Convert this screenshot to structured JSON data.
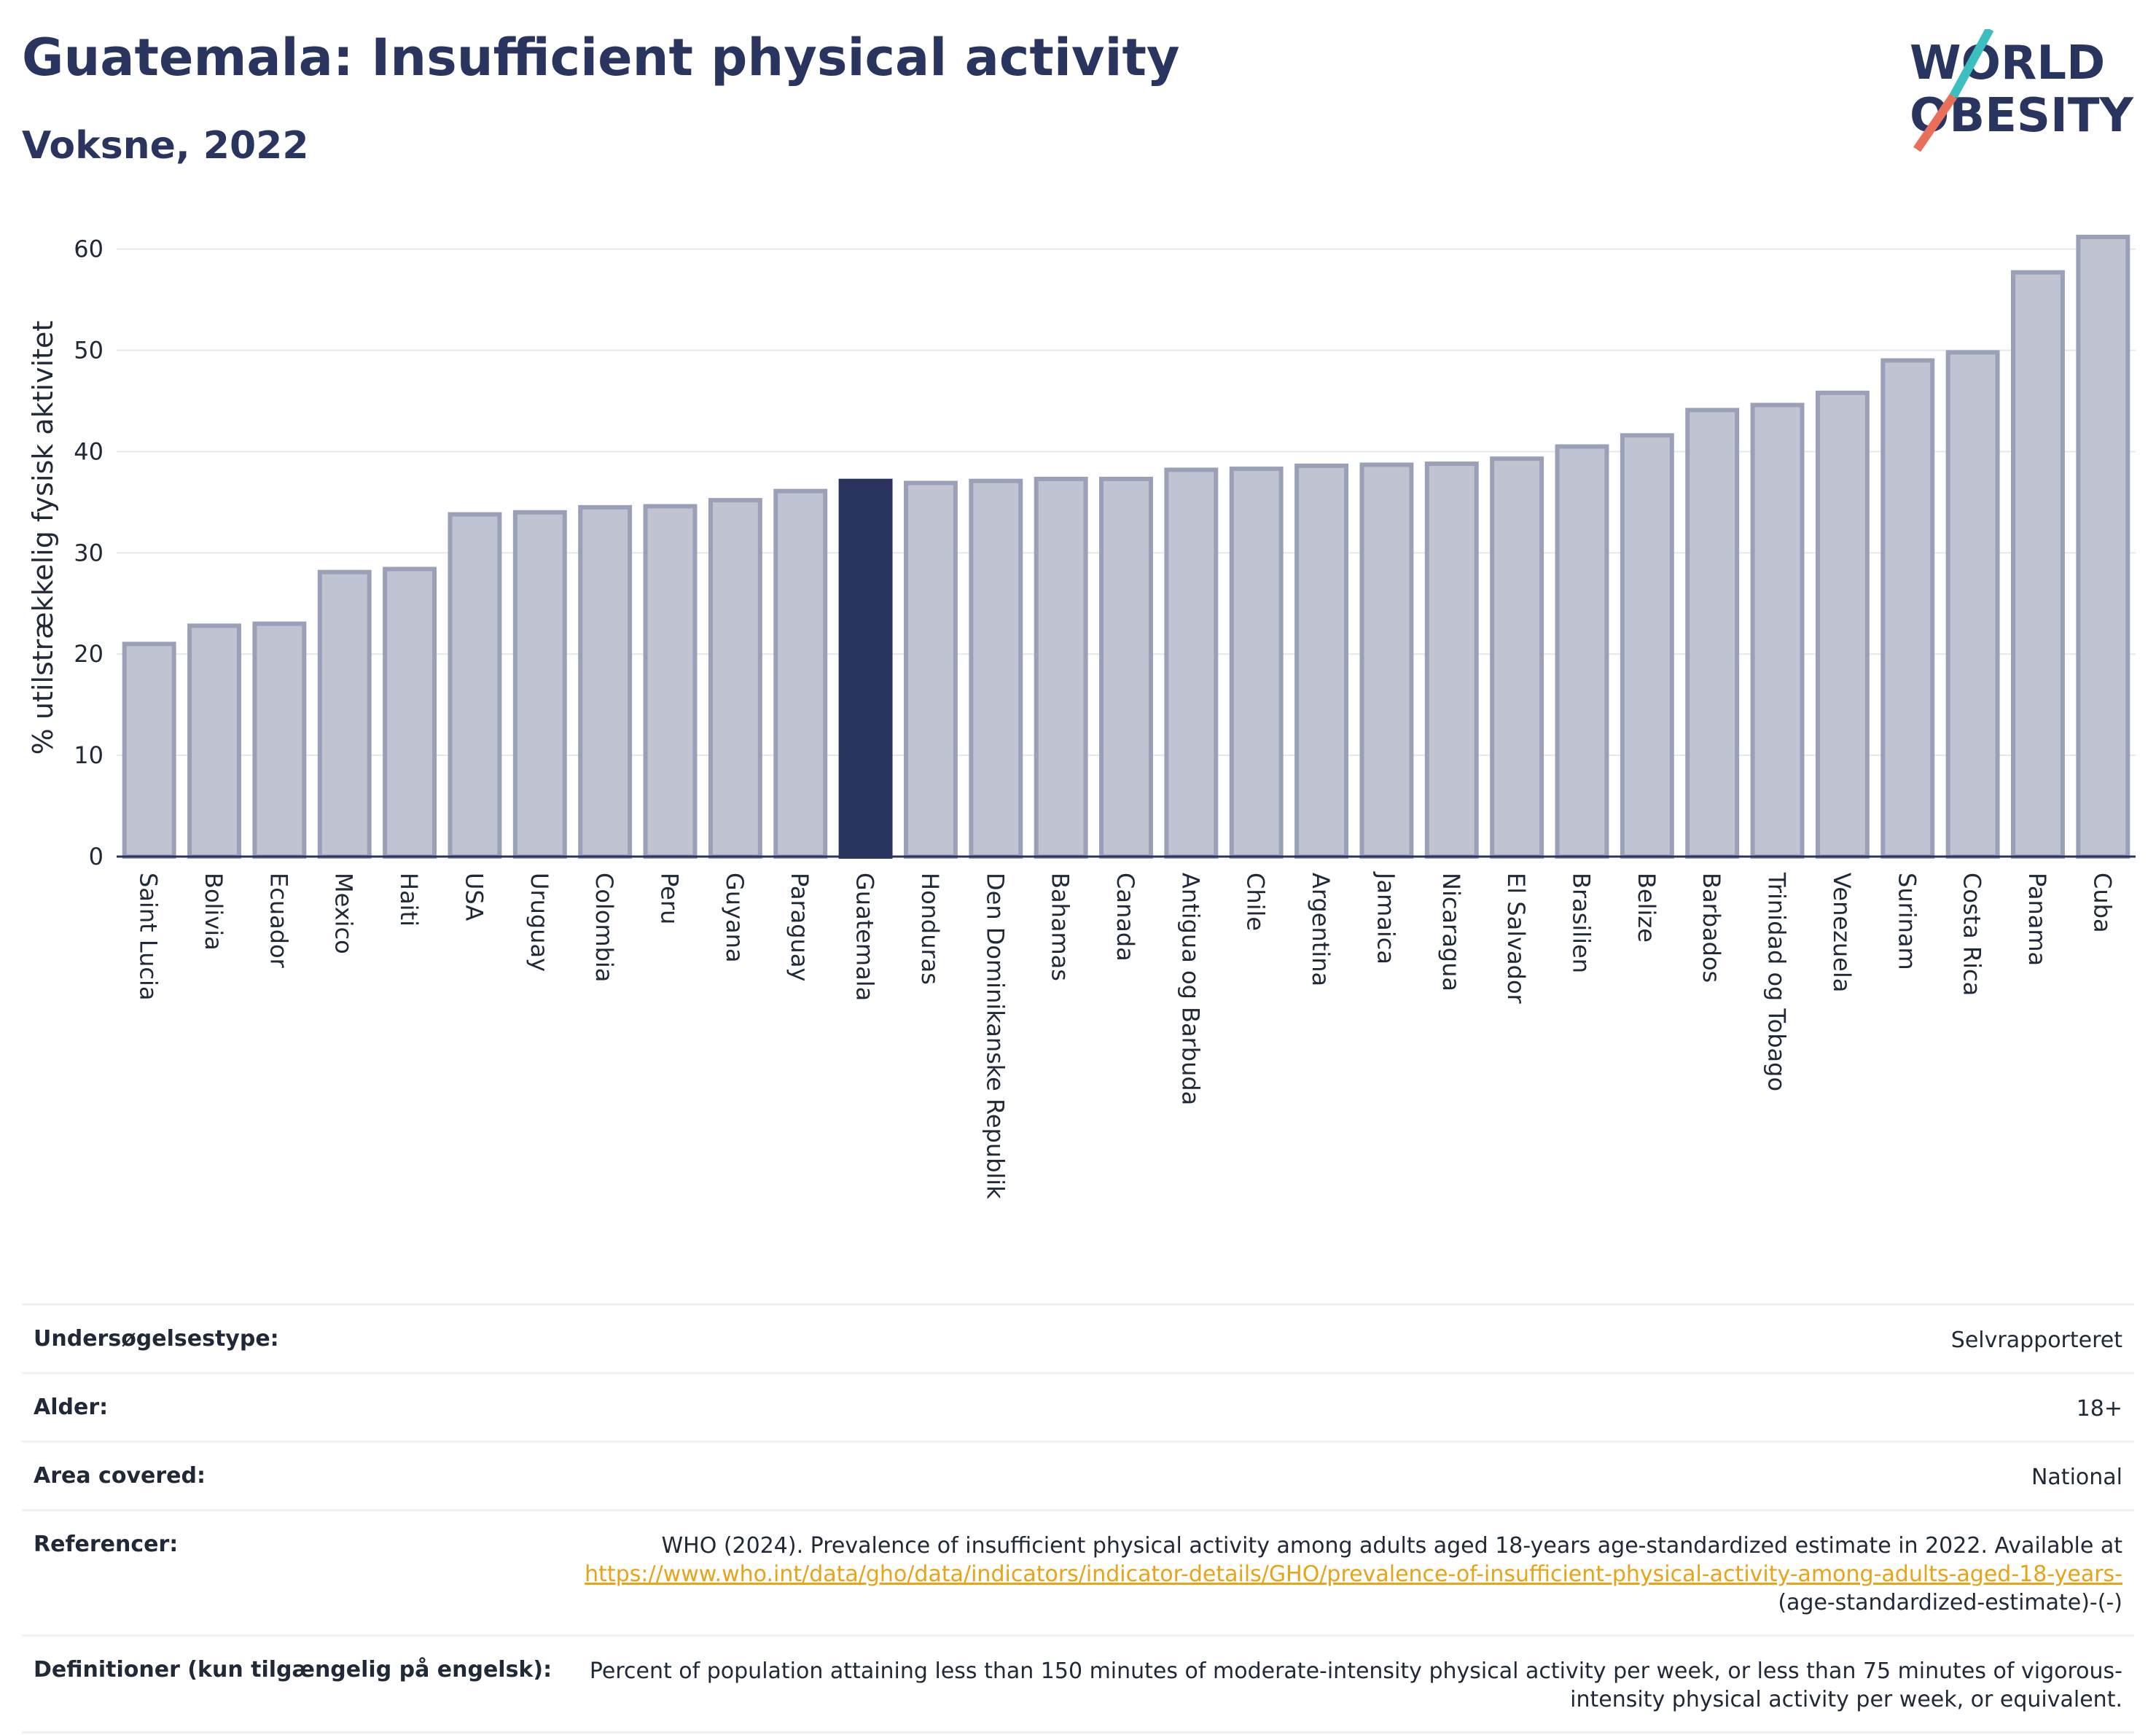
{
  "header": {
    "title": "Guatemala: Insufficient physical activity",
    "subtitle": "Voksne, 2022"
  },
  "logo": {
    "line1": "WORLD",
    "line2": "OBESITY",
    "colors": {
      "text": "#2a355f",
      "slash_teal": "#3bbfbf",
      "slash_coral": "#e8705a"
    }
  },
  "colors": {
    "bar_default": "#c0c3d1",
    "bar_border": "#9aa0b8",
    "bar_highlight": "#2a355f",
    "grid": "#e5e7ee",
    "axis": "#2a355f"
  },
  "chart_data": {
    "type": "bar",
    "ylabel": "% utilstrækkelig fysisk aktivitet",
    "ylim": [
      0,
      63
    ],
    "yticks": [
      0,
      10,
      20,
      30,
      40,
      50,
      60
    ],
    "grid": true,
    "highlight": "Guatemala",
    "categories": [
      "Saint Lucia",
      "Bolivia",
      "Ecuador",
      "Mexico",
      "Haiti",
      "USA",
      "Uruguay",
      "Colombia",
      "Peru",
      "Guyana",
      "Paraguay",
      "Guatemala",
      "Honduras",
      "Den Dominikanske Republik",
      "Bahamas",
      "Canada",
      "Antigua og Barbuda",
      "Chile",
      "Argentina",
      "Jamaica",
      "Nicaragua",
      "El Salvador",
      "Brasilien",
      "Belize",
      "Barbados",
      "Trinidad og Tobago",
      "Venezuela",
      "Surinam",
      "Costa Rica",
      "Panama",
      "Cuba"
    ],
    "values": [
      21.0,
      22.8,
      23.0,
      28.1,
      28.4,
      33.8,
      34.0,
      34.5,
      34.6,
      35.2,
      36.1,
      37.1,
      36.9,
      37.1,
      37.3,
      37.3,
      38.2,
      38.3,
      38.6,
      38.7,
      38.8,
      39.3,
      40.5,
      41.6,
      44.1,
      44.6,
      45.8,
      49.0,
      49.8,
      57.7,
      61.2
    ]
  },
  "info": {
    "survey_type": {
      "label": "Undersøgelsestype:",
      "value": "Selvrapporteret"
    },
    "age": {
      "label": "Alder:",
      "value": "18+"
    },
    "area": {
      "label": "Area covered:",
      "value": "National"
    },
    "references": {
      "label": "Referencer:",
      "text": "WHO (2024). Prevalence of insufficient physical activity among adults aged 18-years age-standardized estimate in 2022. Available at",
      "link": "https://www.who.int/data/gho/data/indicators/indicator-details/GHO/prevalence-of-insufficient-physical-activity-among-adults-aged-18-years-",
      "suffix": "(age-standardized-estimate)-(-)"
    },
    "definitions": {
      "label": "Definitioner (kun tilgængelig på engelsk):",
      "value": "Percent of population attaining less than 150 minutes of moderate-intensity physical activity per week, or less than 75 minutes of vigorous-intensity physical activity per week, or equivalent."
    }
  }
}
